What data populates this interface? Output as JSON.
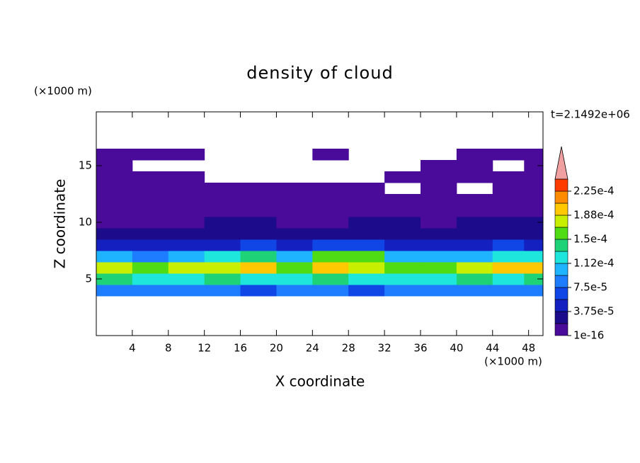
{
  "chart_data": {
    "type": "contour",
    "title": "density of cloud",
    "xlabel": "X coordinate",
    "ylabel": "Z coordinate",
    "xunit": "(×1000 m)",
    "yunit": "(×1000 m)",
    "annotation": "t=2.1492e+06",
    "xlim": [
      0,
      49.6
    ],
    "ylim": [
      0,
      19.75
    ],
    "xticks": [
      4,
      8,
      12,
      16,
      20,
      24,
      28,
      32,
      36,
      40,
      44,
      48
    ],
    "yticks": [
      5,
      10,
      15
    ],
    "x": [
      2,
      6,
      10,
      14,
      18,
      22,
      26,
      30,
      34,
      38,
      42,
      46,
      49
    ],
    "z": [
      4,
      5,
      6,
      7,
      8,
      9,
      10,
      11,
      12,
      13,
      14,
      15,
      16
    ],
    "values": [
      [
        9e-05,
        8e-05,
        8e-05,
        9e-05,
        7e-05,
        8e-05,
        9e-05,
        7e-05,
        8e-05,
        8e-05,
        9e-05,
        8e-05,
        9e-05
      ],
      [
        0.00014,
        0.00013,
        0.00012,
        0.00014,
        0.00013,
        0.00013,
        0.00014,
        0.00013,
        0.00012,
        0.00013,
        0.00014,
        0.00013,
        0.00014
      ],
      [
        0.00018,
        0.00016,
        0.00017,
        0.00018,
        0.00019,
        0.00016,
        0.00019,
        0.00018,
        0.00016,
        0.00015,
        0.00017,
        0.00019,
        0.0002
      ],
      [
        0.00011,
        9e-05,
        0.0001,
        0.00012,
        0.00014,
        0.00011,
        0.00015,
        0.00016,
        0.00011,
        0.0001,
        0.00011,
        0.00013,
        0.00012
      ],
      [
        5e-05,
        4e-05,
        4e-05,
        5e-05,
        6e-05,
        5e-05,
        6e-05,
        7e-05,
        5e-05,
        4e-05,
        5e-05,
        6e-05,
        5e-05
      ],
      [
        3e-05,
        2.5e-05,
        2e-05,
        3e-05,
        3e-05,
        2.5e-05,
        3e-05,
        3e-05,
        2.5e-05,
        2.5e-05,
        3e-05,
        3e-05,
        3e-05
      ],
      [
        1.5e-05,
        1e-05,
        1e-05,
        2e-05,
        2.5e-05,
        1.5e-05,
        1.5e-05,
        2e-05,
        2e-05,
        1.5e-05,
        2e-05,
        2e-05,
        2e-05
      ],
      [
        1e-05,
        5e-06,
        5e-06,
        1e-05,
        1.5e-05,
        1e-05,
        5e-06,
        1e-05,
        1e-05,
        1e-05,
        1e-05,
        1e-05,
        1e-05
      ],
      [
        5e-06,
        5e-06,
        5e-06,
        5e-06,
        5e-06,
        5e-06,
        5e-06,
        5e-06,
        5e-06,
        5e-06,
        2e-06,
        5e-06,
        5e-06
      ],
      [
        2e-06,
        2e-06,
        2e-06,
        2e-06,
        2e-06,
        2e-06,
        2e-06,
        2e-06,
        null,
        2e-06,
        null,
        2e-06,
        2e-06
      ],
      [
        2e-06,
        2e-06,
        2e-06,
        null,
        null,
        null,
        null,
        null,
        2e-06,
        2e-06,
        2e-06,
        2e-06,
        2e-06
      ],
      [
        2e-06,
        null,
        null,
        null,
        null,
        null,
        null,
        null,
        null,
        2e-06,
        2e-06,
        null,
        2e-06
      ],
      [
        2e-06,
        2e-06,
        2e-06,
        null,
        null,
        null,
        2e-06,
        null,
        null,
        null,
        2e-06,
        2e-06,
        2e-06
      ]
    ],
    "levels": [
      1e-16,
      1.875e-05,
      3.75e-05,
      5.625e-05,
      7.5e-05,
      9.375e-05,
      0.0001125,
      0.00013125,
      0.00015,
      0.00016875,
      0.0001875,
      0.00020625,
      0.000225,
      0.00024375
    ],
    "colors": [
      "#4a0a9a",
      "#1c0c8c",
      "#1420c0",
      "#1046e6",
      "#1e7cff",
      "#1eb4ff",
      "#1ee6dc",
      "#1ed278",
      "#50dc14",
      "#c8ee00",
      "#ffc800",
      "#ff8c00",
      "#ff3c00"
    ],
    "extend_color": "#f0a0a0",
    "colorbar_ticks": [
      {
        "value": 1e-16,
        "label": "1e-16"
      },
      {
        "value": 3.75e-05,
        "label": "3.75e-5"
      },
      {
        "value": 7.5e-05,
        "label": "7.5e-5"
      },
      {
        "value": 0.0001125,
        "label": "1.12e-4"
      },
      {
        "value": 0.00015,
        "label": "1.5e-4"
      },
      {
        "value": 0.0001875,
        "label": "1.88e-4"
      },
      {
        "value": 0.000225,
        "label": "2.25e-4"
      }
    ]
  }
}
